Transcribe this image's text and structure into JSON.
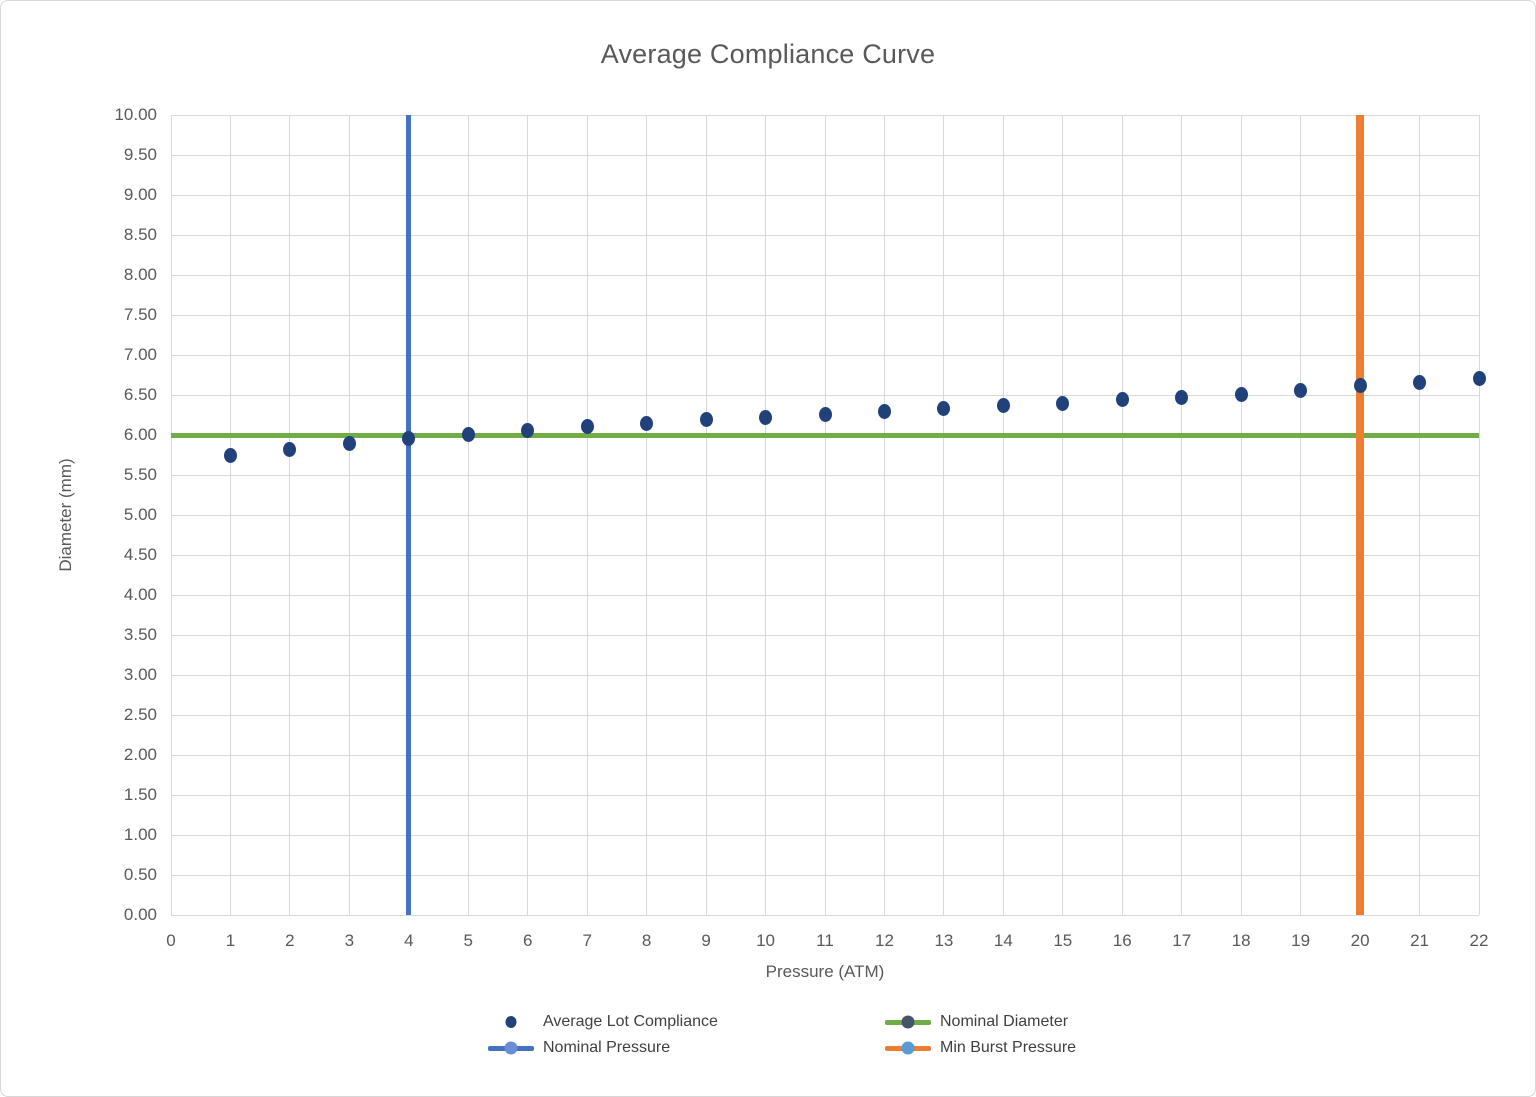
{
  "title": "Average Compliance Curve",
  "colors": {
    "title_text": "#595959",
    "axis_text": "#595959",
    "gridline": "#d9d9d9",
    "chart_border": "#d7d7d7",
    "scatter_navy": "#21417a",
    "nominal_diameter_green": "#70ad47",
    "nominal_pressure_blue": "#4472c4",
    "min_burst_orange": "#ed7d31",
    "legend_text": "#404040"
  },
  "chart_data": {
    "type": "scatter",
    "title": "Average Compliance Curve",
    "xlabel": "Pressure (ATM)",
    "ylabel": "Diameter (mm)",
    "xlim": [
      0,
      22
    ],
    "ylim": [
      0,
      10
    ],
    "x_tick_step": 1,
    "y_tick_step": 0.5,
    "y_tick_decimals": 2,
    "grid": true,
    "legend_position": "bottom",
    "series": [
      {
        "name": "Average Lot Compliance",
        "type": "scatter",
        "color": "#21417a",
        "x": [
          1,
          2,
          3,
          4,
          5,
          6,
          7,
          8,
          9,
          10,
          11,
          12,
          13,
          14,
          15,
          16,
          17,
          18,
          19,
          20,
          21,
          22
        ],
        "y": [
          5.74,
          5.82,
          5.89,
          5.96,
          6.01,
          6.06,
          6.11,
          6.15,
          6.19,
          6.22,
          6.26,
          6.3,
          6.33,
          6.37,
          6.4,
          6.44,
          6.47,
          6.51,
          6.56,
          6.62,
          6.66,
          6.71
        ]
      },
      {
        "name": "Nominal Diameter",
        "type": "hline",
        "y": 6.0,
        "color": "#70ad47",
        "line_width": 5
      },
      {
        "name": "Nominal Pressure",
        "type": "vline",
        "x": 4,
        "color": "#4472c4",
        "line_width": 5
      },
      {
        "name": "Min Burst Pressure",
        "type": "vline",
        "x": 20,
        "color": "#ed7d31",
        "line_width": 8
      }
    ]
  },
  "legend": {
    "items": [
      {
        "label": "Average Lot Compliance",
        "marker": "dot",
        "line_color": "#21417a",
        "dot_color": "#21417a"
      },
      {
        "label": "Nominal Diameter",
        "marker": "line-dot",
        "line_color": "#70ad47",
        "dot_color": "#44546a"
      },
      {
        "label": "Nominal Pressure",
        "marker": "line-dot",
        "line_color": "#4472c4",
        "dot_color": "#6a8ed6"
      },
      {
        "label": "Min Burst Pressure",
        "marker": "line-dot",
        "line_color": "#ed7d31",
        "dot_color": "#5b9bd5"
      }
    ]
  }
}
